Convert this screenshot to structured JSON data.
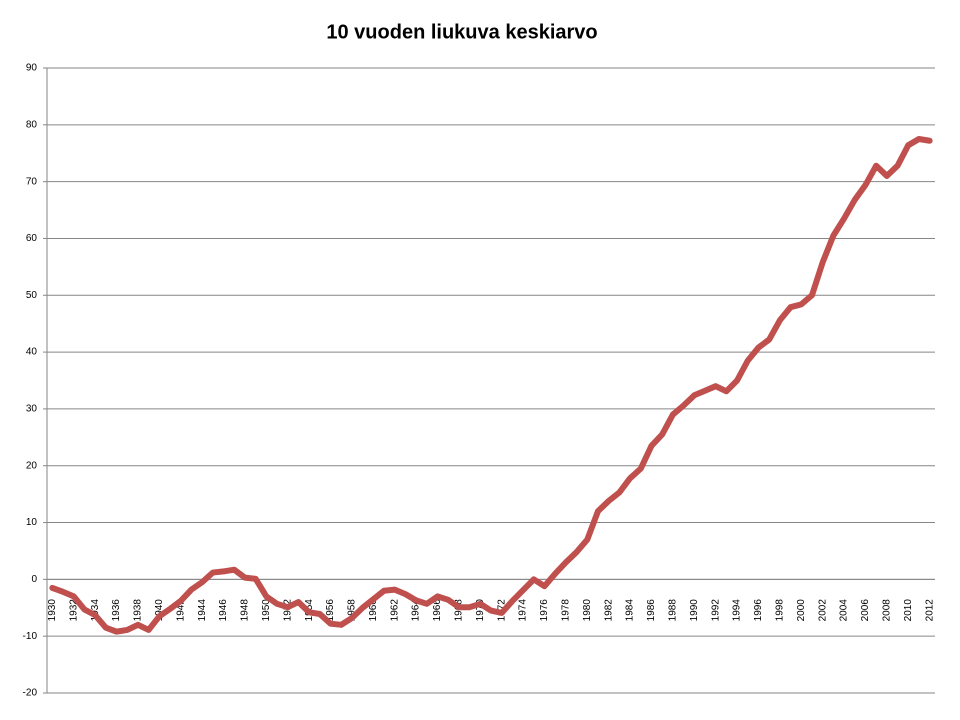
{
  "chart_data": {
    "type": "line",
    "title": "10 vuoden liukuva keskiarvo",
    "categories": [
      "1930",
      null,
      "1932",
      null,
      "1934",
      null,
      "1936",
      null,
      "1938",
      null,
      "1940",
      null,
      "1942",
      null,
      "1944",
      null,
      "1946",
      null,
      "1948",
      null,
      "1950",
      null,
      "1952",
      null,
      "1954",
      null,
      "1956",
      null,
      "1958",
      null,
      "1960",
      null,
      "1962",
      null,
      "1964",
      null,
      "1966",
      null,
      "1968",
      null,
      "1970",
      null,
      "1972",
      null,
      "1974",
      null,
      "1976",
      null,
      "1978",
      null,
      "1980",
      null,
      "1982",
      null,
      "1984",
      null,
      "1986",
      null,
      "1988",
      null,
      "1990",
      null,
      "1992",
      null,
      "1994",
      null,
      "1996",
      null,
      "1998",
      null,
      "2000",
      null,
      "2002",
      null,
      "2004",
      null,
      "2006",
      null,
      "2008",
      null,
      "2010",
      null,
      "2012"
    ],
    "series": [
      {
        "color": "#c0504d",
        "values": [
          -1.5,
          -2.2,
          -3.0,
          -5.3,
          -6.3,
          -8.5,
          -9.2,
          -8.9,
          -8.0,
          -8.9,
          -6.5,
          -5.2,
          -3.8,
          -1.8,
          -0.5,
          1.2,
          1.4,
          1.7,
          0.3,
          0.1,
          -3.0,
          -4.3,
          -4.9,
          -4.0,
          -5.8,
          -6.1,
          -7.8,
          -8.0,
          -6.8,
          -5.0,
          -3.5,
          -2.0,
          -1.8,
          -2.6,
          -3.7,
          -4.3,
          -3.0,
          -3.6,
          -4.9,
          -4.9,
          -4.3,
          -5.5,
          -5.9,
          -3.8,
          -1.9,
          0.0,
          -1.2,
          1.0,
          3.0,
          4.8,
          7.0,
          12.0,
          13.8,
          15.3,
          17.8,
          19.5,
          23.5,
          25.5,
          29.0,
          30.6,
          32.4,
          33.2,
          34.0,
          33.1,
          35.0,
          38.5,
          40.8,
          42.2,
          45.6,
          47.9,
          48.4,
          50.0,
          55.8,
          60.5,
          63.5,
          66.8,
          69.4,
          72.8,
          71.0,
          72.8,
          76.4,
          77.5,
          77.2
        ]
      }
    ],
    "ylim": [
      -20,
      90
    ],
    "yticks": [
      -20,
      -10,
      0,
      10,
      20,
      30,
      40,
      50,
      60,
      70,
      80,
      90
    ],
    "grid": true
  }
}
